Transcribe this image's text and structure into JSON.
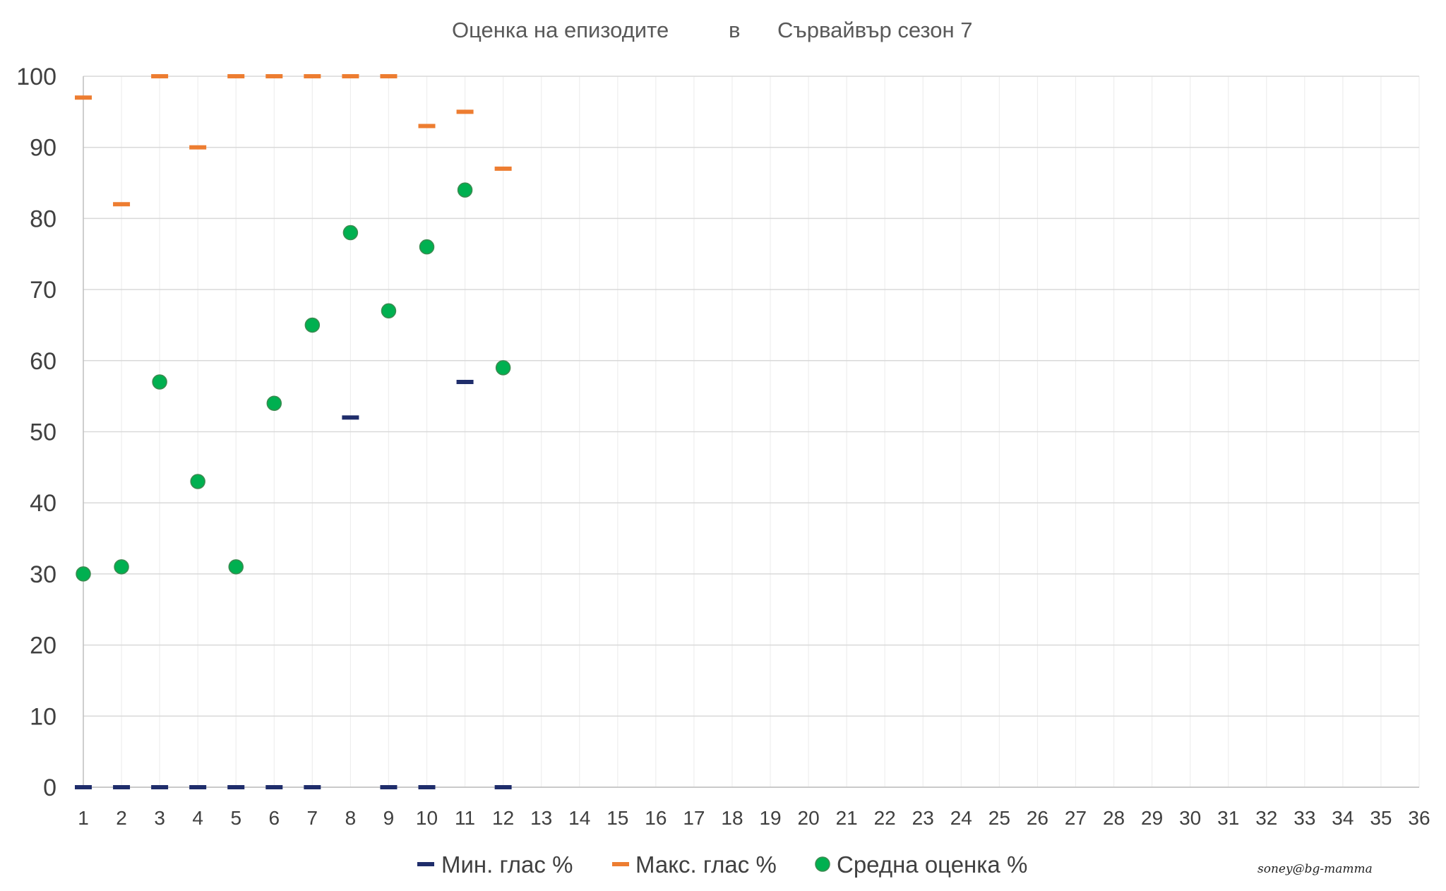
{
  "chart_data": {
    "type": "scatter",
    "title_parts": [
      "Оценка на епизодите",
      "в",
      "Сървайвър  сезон 7"
    ],
    "xlabel": "",
    "ylabel": "",
    "x_categories": [
      "1",
      "2",
      "3",
      "4",
      "5",
      "6",
      "7",
      "8",
      "9",
      "10",
      "11",
      "12",
      "13",
      "14",
      "15",
      "16",
      "17",
      "18",
      "19",
      "20",
      "21",
      "22",
      "23",
      "24",
      "25",
      "26",
      "27",
      "28",
      "29",
      "30",
      "31",
      "32",
      "33",
      "34",
      "35",
      "36"
    ],
    "yticks": [
      "0",
      "10",
      "20",
      "30",
      "40",
      "50",
      "60",
      "70",
      "80",
      "90",
      "100"
    ],
    "ylim": [
      0,
      100
    ],
    "grid": true,
    "legend_position": "bottom",
    "series": [
      {
        "name": "Мин. глас %",
        "marker": "dash",
        "color": "#1f2d6b",
        "points": [
          [
            1,
            0
          ],
          [
            2,
            0
          ],
          [
            3,
            0
          ],
          [
            4,
            0
          ],
          [
            5,
            0
          ],
          [
            6,
            0
          ],
          [
            7,
            0
          ],
          [
            8,
            52
          ],
          [
            9,
            0
          ],
          [
            10,
            0
          ],
          [
            11,
            57
          ],
          [
            12,
            0
          ]
        ]
      },
      {
        "name": "Макс. глас %",
        "marker": "dash",
        "color": "#ed7d31",
        "points": [
          [
            1,
            97
          ],
          [
            2,
            82
          ],
          [
            3,
            100
          ],
          [
            4,
            90
          ],
          [
            5,
            100
          ],
          [
            6,
            100
          ],
          [
            7,
            100
          ],
          [
            8,
            100
          ],
          [
            9,
            100
          ],
          [
            10,
            93
          ],
          [
            11,
            95
          ],
          [
            12,
            87
          ]
        ]
      },
      {
        "name": "Средна оценка %",
        "marker": "circle",
        "color": "#00b050",
        "points": [
          [
            1,
            30
          ],
          [
            2,
            31
          ],
          [
            3,
            57
          ],
          [
            4,
            43
          ],
          [
            5,
            31
          ],
          [
            6,
            54
          ],
          [
            7,
            65
          ],
          [
            8,
            78
          ],
          [
            9,
            67
          ],
          [
            10,
            76
          ],
          [
            11,
            84
          ],
          [
            12,
            59
          ]
        ]
      }
    ]
  },
  "watermark": "soney@bg-mamma"
}
